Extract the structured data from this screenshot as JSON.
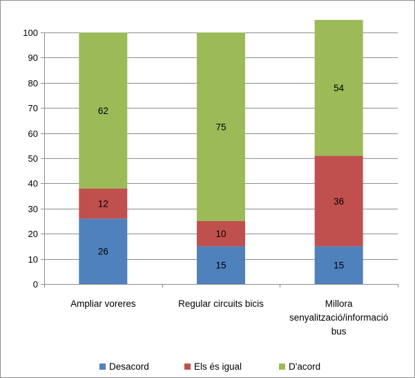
{
  "chart_data": {
    "type": "bar",
    "stacked": true,
    "categories": [
      [
        "Ampliar voreres"
      ],
      [
        "Regular circuits bicis"
      ],
      [
        "Millora",
        "senyalització/informació",
        "bus"
      ]
    ],
    "series": [
      {
        "name": "Desacord",
        "color": "#4f81bd",
        "values": [
          26,
          15,
          15
        ]
      },
      {
        "name": "Els és igual",
        "color": "#c0504d",
        "values": [
          12,
          10,
          36
        ]
      },
      {
        "name": "D'acord",
        "color": "#9bbb59",
        "values": [
          62,
          75,
          54
        ]
      }
    ],
    "ylim": [
      0,
      100
    ],
    "yticks": [
      0,
      10,
      20,
      30,
      40,
      50,
      60,
      70,
      80,
      90,
      100
    ],
    "grid": true,
    "data_labels": true,
    "legend_position": "bottom"
  }
}
